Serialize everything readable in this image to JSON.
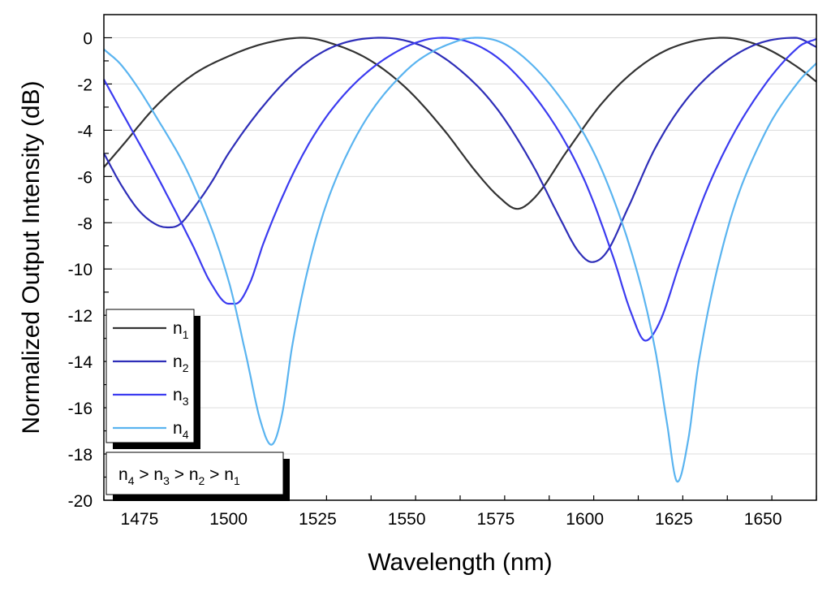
{
  "chart_data": {
    "type": "line",
    "xlabel": "Wavelength (nm)",
    "ylabel": "Normalized Output Intensity (dB)",
    "xlim": [
      1465,
      1665
    ],
    "ylim": [
      -20,
      1
    ],
    "xticks": [
      1475,
      1500,
      1525,
      1550,
      1575,
      1600,
      1625,
      1650
    ],
    "yticks": [
      0,
      -2,
      -4,
      -6,
      -8,
      -10,
      -12,
      -14,
      -16,
      -18,
      -20
    ],
    "grid": true,
    "legend_position": "bottom-left",
    "annotation": "n4 > n3 > n2 > n1",
    "series": [
      {
        "name": "n1",
        "color": "#333333",
        "x": [
          1465,
          1470,
          1480,
          1490,
          1500,
          1510,
          1521,
          1530,
          1540,
          1550,
          1560,
          1570,
          1576,
          1581,
          1586,
          1595,
          1605,
          1615,
          1625,
          1639,
          1650,
          1660,
          1665
        ],
        "y": [
          -5.6,
          -4.7,
          -2.9,
          -1.6,
          -0.8,
          -0.25,
          0,
          -0.3,
          -1.0,
          -2.2,
          -3.9,
          -5.9,
          -6.9,
          -7.4,
          -6.9,
          -4.9,
          -2.8,
          -1.3,
          -0.4,
          0,
          -0.4,
          -1.3,
          -1.9
        ]
      },
      {
        "name": "n2",
        "color": "#2e2eb8",
        "x": [
          1465,
          1470,
          1475,
          1480,
          1483,
          1486,
          1490,
          1495,
          1500,
          1510,
          1520,
          1530,
          1543,
          1555,
          1565,
          1575,
          1585,
          1593,
          1598,
          1602,
          1606,
          1612,
          1620,
          1630,
          1645,
          1659,
          1665
        ],
        "y": [
          -5.0,
          -6.4,
          -7.5,
          -8.1,
          -8.2,
          -8.1,
          -7.4,
          -6.3,
          -5.0,
          -2.9,
          -1.3,
          -0.35,
          0,
          -0.4,
          -1.4,
          -3.0,
          -5.4,
          -7.8,
          -9.2,
          -9.7,
          -9.3,
          -7.4,
          -4.7,
          -2.4,
          -0.5,
          0,
          -0.4
        ]
      },
      {
        "name": "n3",
        "color": "#3b3bf0",
        "x": [
          1465,
          1470,
          1480,
          1490,
          1495,
          1500,
          1502,
          1506,
          1510,
          1520,
          1530,
          1545,
          1560,
          1575,
          1590,
          1600,
          1608,
          1613,
          1617,
          1621,
          1627,
          1635,
          1645,
          1660,
          1665
        ],
        "y": [
          -1.8,
          -3.2,
          -6.0,
          -9.0,
          -10.6,
          -11.5,
          -11.5,
          -10.6,
          -8.8,
          -5.3,
          -2.9,
          -0.8,
          0,
          -0.8,
          -3.4,
          -6.2,
          -9.5,
          -11.9,
          -13.1,
          -12.3,
          -9.6,
          -6.3,
          -3.3,
          -0.4,
          -0.05
        ]
      },
      {
        "name": "n4",
        "color": "#5ab4f0",
        "x": [
          1465,
          1470,
          1480,
          1490,
          1500,
          1505,
          1509,
          1512,
          1515,
          1518,
          1525,
          1535,
          1550,
          1565,
          1570,
          1580,
          1595,
          1605,
          1615,
          1620,
          1623,
          1626,
          1629,
          1632,
          1640,
          1650,
          1660,
          1665
        ],
        "y": [
          -0.5,
          -1.2,
          -3.5,
          -6.3,
          -10.5,
          -13.8,
          -16.6,
          -17.6,
          -16.3,
          -13.2,
          -8.4,
          -4.5,
          -1.4,
          -0.1,
          0,
          -0.5,
          -3.0,
          -5.8,
          -10.3,
          -13.7,
          -16.6,
          -19.2,
          -17.4,
          -14.0,
          -8.3,
          -4.3,
          -1.9,
          -1.1
        ]
      }
    ]
  }
}
